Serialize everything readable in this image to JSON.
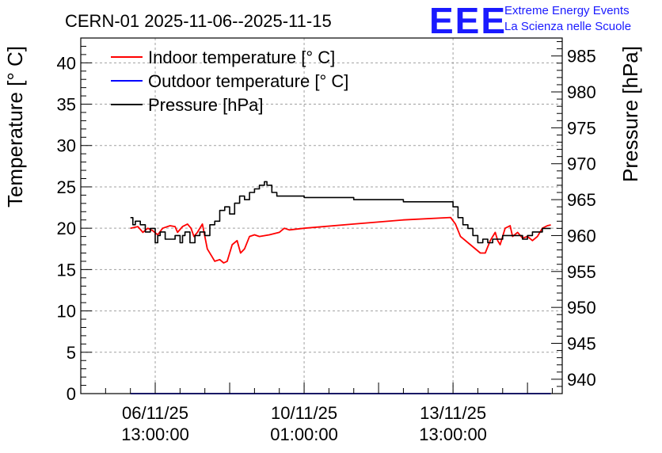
{
  "header": {
    "title": "CERN-01 2025-11-06--2025-11-15",
    "logo_text": "EEE",
    "org_line1": "Extreme Energy Events",
    "org_line2": "La Scienza nelle Scuole",
    "brand_color": "#1a1aff"
  },
  "chart_data": {
    "type": "line",
    "title": "CERN-01 2025-11-06--2025-11-15",
    "ylabel": "Temperature [° C]",
    "y2label": "Pressure [hPa]",
    "xlabel": "",
    "xlim": [
      -1.5,
      8.2
    ],
    "ylim": [
      0,
      43
    ],
    "y2lim": [
      938,
      987.5
    ],
    "x_unit": "days since 06/11/25 13:00:00",
    "grid": true,
    "legend_position": "top-left",
    "x_ticks": [
      {
        "x": 0,
        "line1": "06/11/25",
        "line2": "13:00:00"
      },
      {
        "x": 3,
        "line1": "10/11/25",
        "line2": "01:00:00"
      },
      {
        "x": 6,
        "line1": "13/11/25",
        "line2": "13:00:00"
      }
    ],
    "y_ticks": [
      0,
      5,
      10,
      15,
      20,
      25,
      30,
      35,
      40
    ],
    "y2_ticks": [
      940,
      945,
      950,
      955,
      960,
      965,
      970,
      975,
      980,
      985
    ],
    "series": [
      {
        "name": "Indoor temperature [° C]",
        "color": "#ff0000",
        "axis": "left",
        "x": [
          -0.5,
          -0.35,
          -0.25,
          -0.15,
          -0.05,
          0.05,
          0.15,
          0.3,
          0.4,
          0.45,
          0.55,
          0.65,
          0.72,
          0.78,
          0.85,
          0.95,
          1.05,
          1.15,
          1.2,
          1.3,
          1.38,
          1.45,
          1.55,
          1.65,
          1.72,
          1.8,
          1.9,
          2.0,
          2.1,
          2.3,
          2.5,
          2.6,
          2.7,
          3.0,
          4.0,
          5.0,
          5.95,
          6.05,
          6.15,
          6.35,
          6.55,
          6.65,
          6.75,
          6.85,
          6.9,
          6.95,
          7.05,
          7.15,
          7.2,
          7.3,
          7.4,
          7.5,
          7.6,
          7.7,
          7.8,
          7.9,
          7.97
        ],
        "y": [
          20.0,
          20.2,
          19.5,
          20.0,
          19.7,
          19.2,
          20.0,
          20.3,
          20.2,
          19.5,
          20.2,
          20.5,
          20.0,
          19.0,
          19.5,
          20.5,
          17.5,
          16.5,
          16.0,
          16.2,
          15.8,
          16.0,
          18.0,
          18.5,
          17.0,
          17.5,
          19.0,
          19.2,
          19.0,
          19.2,
          19.5,
          20.0,
          19.8,
          20.0,
          20.5,
          21.0,
          21.3,
          20.5,
          19.0,
          18.0,
          17.0,
          17.0,
          18.5,
          19.5,
          18.5,
          18.0,
          20.0,
          20.3,
          19.0,
          19.5,
          18.8,
          19.0,
          18.5,
          19.0,
          20.0,
          20.3,
          20.4
        ]
      },
      {
        "name": "Outdoor temperature [° C]",
        "color": "#0000ff",
        "axis": "left",
        "x": [
          -0.5,
          7.97
        ],
        "y": [
          0,
          0
        ]
      },
      {
        "name": "Pressure [hPa]",
        "color": "#000000",
        "axis": "right",
        "x": [
          -0.5,
          -0.45,
          -0.4,
          -0.3,
          -0.2,
          -0.1,
          0.0,
          0.05,
          0.1,
          0.2,
          0.3,
          0.4,
          0.5,
          0.55,
          0.6,
          0.7,
          0.8,
          0.9,
          1.0,
          1.1,
          1.2,
          1.3,
          1.4,
          1.5,
          1.6,
          1.7,
          1.8,
          1.9,
          2.0,
          2.1,
          2.2,
          2.25,
          2.35,
          2.45,
          2.5,
          2.7,
          3.0,
          4.0,
          5.0,
          6.0,
          6.1,
          6.2,
          6.3,
          6.4,
          6.5,
          6.6,
          6.7,
          6.8,
          6.9,
          7.0,
          7.2,
          7.4,
          7.5,
          7.6,
          7.7,
          7.8,
          7.9,
          7.97
        ],
        "y": [
          962.5,
          961.5,
          962.0,
          961.5,
          960.5,
          961.0,
          959.0,
          960.0,
          960.5,
          959.5,
          959.5,
          960.0,
          959.0,
          960.0,
          960.5,
          959.0,
          960.0,
          960.5,
          960.0,
          961.5,
          962.0,
          963.5,
          964.0,
          963.0,
          964.5,
          965.5,
          965.0,
          966.0,
          966.5,
          967.0,
          967.5,
          967.0,
          966.0,
          965.5,
          965.5,
          965.5,
          965.3,
          965.0,
          964.7,
          964.0,
          962.5,
          961.5,
          961.0,
          960.0,
          959.0,
          959.5,
          959.0,
          959.5,
          959.5,
          960.0,
          960.0,
          959.5,
          960.0,
          960.5,
          960.5,
          961.0,
          961.0,
          961.0
        ]
      }
    ]
  }
}
